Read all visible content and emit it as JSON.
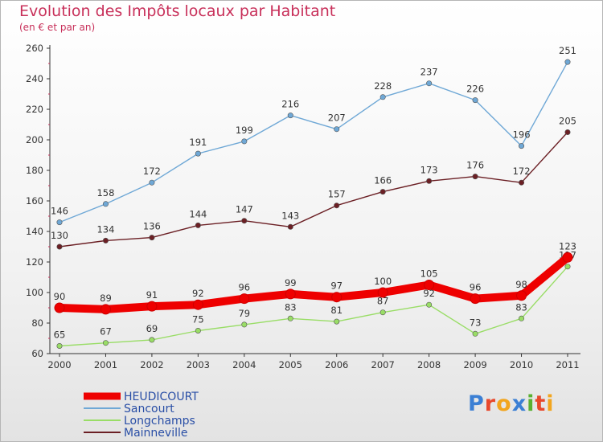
{
  "header": {
    "title": "Evolution des Impôts locaux par Habitant",
    "subtitle": "(en € et par an)"
  },
  "logo": {
    "text": "Proxiti",
    "colors": [
      "#3b7fd4",
      "#e8482c",
      "#f2a51e",
      "#3b7fd4",
      "#5ab031",
      "#e8482c",
      "#f2a51e"
    ]
  },
  "chart_data": {
    "type": "line",
    "categories": [
      "2000",
      "2001",
      "2002",
      "2003",
      "2004",
      "2005",
      "2006",
      "2007",
      "2008",
      "2009",
      "2010",
      "2011"
    ],
    "ylim": [
      60,
      260
    ],
    "yticks": [
      60,
      80,
      100,
      120,
      140,
      160,
      180,
      200,
      220,
      240,
      260
    ],
    "grid": false,
    "legend_position": "bottom-left",
    "series": [
      {
        "name": "HEUDICOURT",
        "color": "#ee0000",
        "values": [
          90,
          89,
          91,
          92,
          96,
          99,
          97,
          100,
          105,
          96,
          98,
          123
        ]
      },
      {
        "name": "Sancourt",
        "color": "#6fa8d6",
        "values": [
          146,
          158,
          172,
          191,
          199,
          216,
          207,
          228,
          237,
          226,
          196,
          251
        ]
      },
      {
        "name": "Longchamps",
        "color": "#99dd66",
        "values": [
          65,
          67,
          69,
          75,
          79,
          83,
          81,
          87,
          92,
          73,
          83,
          117
        ]
      },
      {
        "name": "Mainneville",
        "color": "#6b1f24",
        "values": [
          130,
          134,
          136,
          144,
          147,
          143,
          157,
          166,
          173,
          176,
          172,
          205
        ]
      }
    ]
  }
}
